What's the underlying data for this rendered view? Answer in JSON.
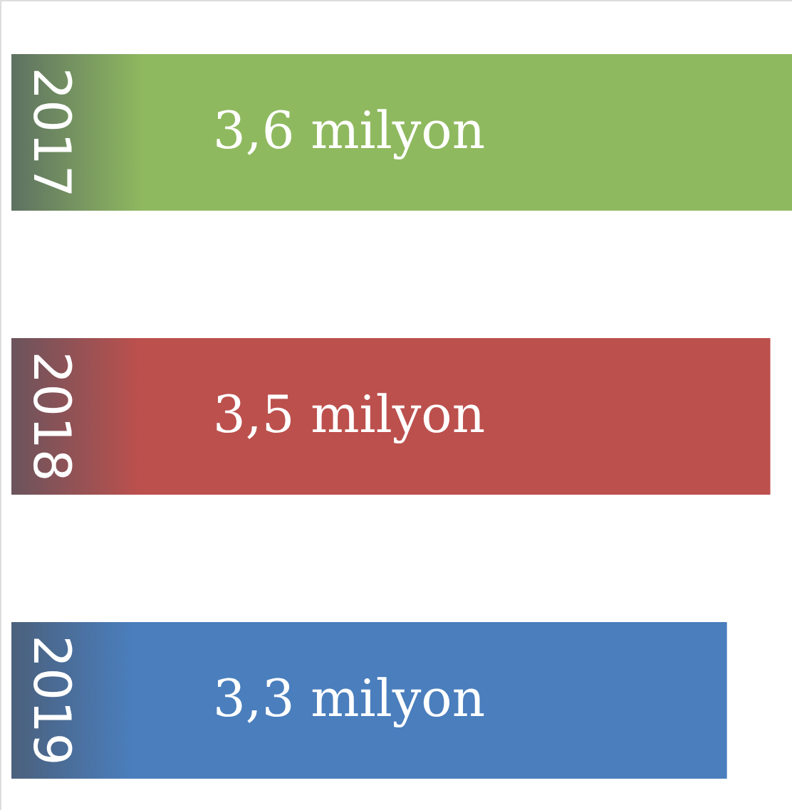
{
  "chart_data": {
    "type": "bar",
    "orientation": "horizontal",
    "tick_labels": "y",
    "categories": [
      "2017",
      "2018",
      "2019"
    ],
    "values": [
      3.6,
      3.5,
      3.3
    ],
    "colors": [
      "#8fb95f",
      "#bc504d",
      "#4a7ebd"
    ],
    "value_labels": [
      "3,6 milyon",
      "3,5 milyon",
      "3,3 milyon"
    ]
  }
}
